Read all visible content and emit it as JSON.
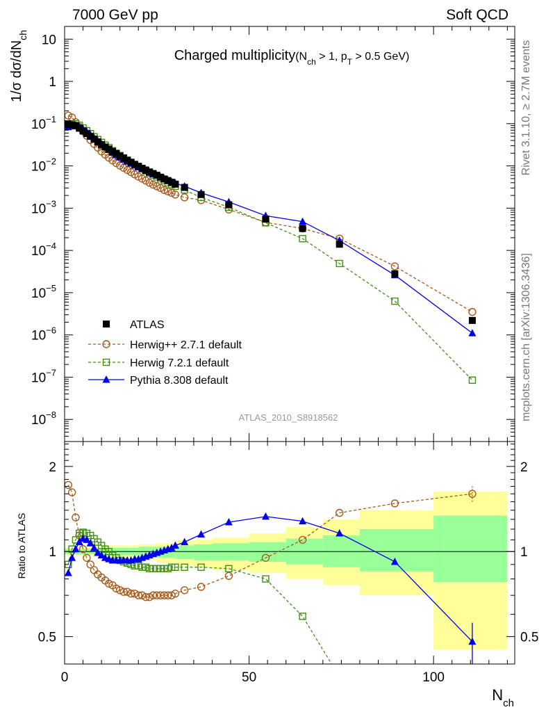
{
  "header": {
    "left": "7000 GeV pp",
    "right": "Soft QCD"
  },
  "side_labels": {
    "rivet": "Rivet 3.1.10, ≥ 2.7M events",
    "mcplots": "mcplots.cern.ch [arXiv:1306.3436]"
  },
  "chart_data": [
    {
      "type": "scatter",
      "panel": "main",
      "title_main": "Charged multiplicity",
      "title_sub": "(N_ch > 1, p_T > 0.5 GeV)",
      "ylabel": "1/σ dσ/dN_ch",
      "y_scale": "log",
      "ylim": [
        3e-09,
        20
      ],
      "xlim": [
        0,
        122
      ],
      "analysis_tag": "ATLAS_2010_S8918562",
      "y_ticks": [
        {
          "value": 10,
          "label": "10"
        },
        {
          "value": 1,
          "label": "1"
        },
        {
          "value": 0.1,
          "base": "10",
          "exp": "−1"
        },
        {
          "value": 0.01,
          "base": "10",
          "exp": "−2"
        },
        {
          "value": 0.001,
          "base": "10",
          "exp": "−3"
        },
        {
          "value": 0.0001,
          "base": "10",
          "exp": "−4"
        },
        {
          "value": 1e-05,
          "base": "10",
          "exp": "−5"
        },
        {
          "value": 1e-06,
          "base": "10",
          "exp": "−6"
        },
        {
          "value": 1e-07,
          "base": "10",
          "exp": "−7"
        },
        {
          "value": 1e-08,
          "base": "10",
          "exp": "−8"
        }
      ],
      "legend_position": "middle-left",
      "series": [
        {
          "name": "ATLAS",
          "color": "#000000",
          "marker": "square-filled",
          "line": "none",
          "x": [
            1,
            2,
            3,
            4,
            5,
            6,
            7,
            8,
            9,
            10,
            11,
            12,
            13,
            14,
            15,
            16,
            17,
            18,
            19,
            20,
            21,
            22,
            23,
            24,
            25,
            26,
            27,
            28,
            29,
            30,
            32.5,
            37,
            44.5,
            54.5,
            64.5,
            74.5,
            89.5,
            110.5
          ],
          "y": [
            0.099,
            0.093,
            0.089,
            0.078,
            0.067,
            0.058,
            0.05,
            0.043,
            0.037,
            0.032,
            0.028,
            0.025,
            0.022,
            0.0195,
            0.0172,
            0.0153,
            0.0136,
            0.0122,
            0.0109,
            0.0098,
            0.0088,
            0.008,
            0.0072,
            0.0066,
            0.006,
            0.0054,
            0.0049,
            0.0045,
            0.0041,
            0.0037,
            0.0031,
            0.0021,
            0.0012,
            0.00055,
            0.00033,
            0.00014,
            2.8e-05,
            2.2e-06
          ]
        },
        {
          "name": "Herwig++ 2.7.1 default",
          "color": "#a65a1a",
          "marker": "circle-open",
          "line": "dashed",
          "x": [
            1,
            2,
            3,
            4,
            5,
            6,
            7,
            8,
            9,
            10,
            11,
            12,
            13,
            14,
            15,
            16,
            17,
            18,
            19,
            20,
            21,
            22,
            23,
            24,
            25,
            26,
            27,
            28,
            29,
            30,
            32.5,
            37,
            44.5,
            54.5,
            64.5,
            74.5,
            89.5,
            110.5
          ],
          "y": [
            0.155,
            0.14,
            0.108,
            0.084,
            0.066,
            0.052,
            0.041,
            0.033,
            0.027,
            0.022,
            0.0185,
            0.0157,
            0.0135,
            0.0117,
            0.0102,
            0.009,
            0.008,
            0.0071,
            0.0063,
            0.0056,
            0.005,
            0.0045,
            0.004,
            0.0036,
            0.0033,
            0.003,
            0.0027,
            0.0025,
            0.0023,
            0.0021,
            0.0018,
            0.00155,
            0.00093,
            0.00046,
            0.00033,
            0.00019,
            4.2e-05,
            3.5e-06
          ]
        },
        {
          "name": "Herwig 7.2.1 default",
          "color": "#3f8f10",
          "marker": "square-open",
          "line": "dashed",
          "x": [
            1,
            2,
            3,
            4,
            5,
            6,
            7,
            8,
            9,
            10,
            11,
            12,
            13,
            14,
            15,
            16,
            17,
            18,
            19,
            20,
            21,
            22,
            23,
            24,
            25,
            26,
            27,
            28,
            29,
            30,
            32.5,
            37,
            44.5,
            54.5,
            64.5,
            74.5,
            89.5,
            110.5
          ],
          "y": [
            0.091,
            0.095,
            0.099,
            0.091,
            0.079,
            0.068,
            0.058,
            0.049,
            0.042,
            0.036,
            0.031,
            0.027,
            0.023,
            0.02,
            0.0176,
            0.0155,
            0.0137,
            0.0121,
            0.0107,
            0.0096,
            0.0085,
            0.0076,
            0.0068,
            0.0061,
            0.0055,
            0.005,
            0.0045,
            0.004,
            0.0036,
            0.0033,
            0.0027,
            0.0018,
            0.00105,
            0.00045,
            0.00019,
            4.9e-05,
            6.3e-06,
            8.5e-08
          ]
        },
        {
          "name": "Pythia 8.308 default",
          "color": "#0000ee",
          "marker": "triangle-filled",
          "line": "solid",
          "x": [
            1,
            2,
            3,
            4,
            5,
            6,
            7,
            8,
            9,
            10,
            11,
            12,
            13,
            14,
            15,
            16,
            17,
            18,
            19,
            20,
            21,
            22,
            23,
            24,
            25,
            26,
            27,
            28,
            29,
            30,
            32.5,
            37,
            44.5,
            54.5,
            64.5,
            74.5,
            89.5,
            110.5
          ],
          "y": [
            0.083,
            0.088,
            0.09,
            0.084,
            0.075,
            0.065,
            0.055,
            0.046,
            0.039,
            0.033,
            0.028,
            0.024,
            0.0205,
            0.018,
            0.0159,
            0.0142,
            0.0127,
            0.0114,
            0.0103,
            0.0093,
            0.0085,
            0.0077,
            0.007,
            0.0064,
            0.0059,
            0.0054,
            0.005,
            0.0046,
            0.0042,
            0.0039,
            0.0033,
            0.0023,
            0.0014,
            0.00066,
            0.00048,
            0.00017,
            2.6e-05,
            1.1e-06
          ]
        }
      ]
    },
    {
      "type": "line",
      "panel": "ratio",
      "ylabel": "Ratio to ATLAS",
      "y_scale": "log",
      "ylim": [
        0.4,
        2.45
      ],
      "xlim": [
        0,
        122
      ],
      "xlabel": "N_ch",
      "x_ticks": [
        0,
        50,
        100
      ],
      "y_ticks": [
        {
          "value": 0.5,
          "label": "0.5"
        },
        {
          "value": 1,
          "label": "1"
        },
        {
          "value": 2,
          "label": "2"
        }
      ],
      "reference_line": 1,
      "bands": [
        {
          "x_lo": 0,
          "x_hi": 10,
          "inner": [
            0.98,
            1.02
          ],
          "outer": [
            0.97,
            1.03
          ]
        },
        {
          "x_lo": 10,
          "x_hi": 20,
          "inner": [
            0.97,
            1.03
          ],
          "outer": [
            0.95,
            1.05
          ]
        },
        {
          "x_lo": 20,
          "x_hi": 25,
          "inner": [
            0.96,
            1.04
          ],
          "outer": [
            0.93,
            1.06
          ]
        },
        {
          "x_lo": 25,
          "x_hi": 30,
          "inner": [
            0.95,
            1.04
          ],
          "outer": [
            0.91,
            1.07
          ]
        },
        {
          "x_lo": 30,
          "x_hi": 35,
          "inner": [
            0.94,
            1.05
          ],
          "outer": [
            0.89,
            1.09
          ]
        },
        {
          "x_lo": 35,
          "x_hi": 40,
          "inner": [
            0.93,
            1.06
          ],
          "outer": [
            0.88,
            1.1
          ]
        },
        {
          "x_lo": 40,
          "x_hi": 50,
          "inner": [
            0.93,
            1.07
          ],
          "outer": [
            0.86,
            1.12
          ]
        },
        {
          "x_lo": 50,
          "x_hi": 60,
          "inner": [
            0.92,
            1.08
          ],
          "outer": [
            0.84,
            1.16
          ]
        },
        {
          "x_lo": 60,
          "x_hi": 70,
          "inner": [
            0.9,
            1.11
          ],
          "outer": [
            0.8,
            1.22
          ]
        },
        {
          "x_lo": 70,
          "x_hi": 80,
          "inner": [
            0.88,
            1.14
          ],
          "outer": [
            0.76,
            1.3
          ]
        },
        {
          "x_lo": 80,
          "x_hi": 100,
          "inner": [
            0.85,
            1.2
          ],
          "outer": [
            0.7,
            1.4
          ]
        },
        {
          "x_lo": 100,
          "x_hi": 120,
          "inner": [
            0.78,
            1.34
          ],
          "outer": [
            0.45,
            1.63
          ]
        }
      ],
      "band_colors": {
        "inner": "#99ff99",
        "outer": "#ffff99"
      },
      "series": [
        {
          "name": "Herwig++ 2.7.1 default",
          "color": "#a65a1a",
          "marker": "circle-open",
          "line": "dashed",
          "x": [
            1,
            2,
            3,
            4,
            5,
            6,
            7,
            8,
            9,
            10,
            11,
            12,
            13,
            14,
            15,
            16,
            17,
            18,
            19,
            20,
            21,
            22,
            23,
            24,
            25,
            26,
            27,
            28,
            29,
            30,
            32.5,
            37,
            44.5,
            54.5,
            64.5,
            74.5,
            89.5,
            110.5
          ],
          "y": [
            1.72,
            1.62,
            1.32,
            1.14,
            1.02,
            0.95,
            0.9,
            0.86,
            0.83,
            0.81,
            0.79,
            0.77,
            0.76,
            0.74,
            0.73,
            0.72,
            0.72,
            0.71,
            0.71,
            0.7,
            0.7,
            0.69,
            0.69,
            0.7,
            0.7,
            0.7,
            0.7,
            0.7,
            0.7,
            0.71,
            0.73,
            0.75,
            0.82,
            0.95,
            1.1,
            1.37,
            1.48,
            1.6
          ],
          "err": {
            "110.5": 0.1
          }
        },
        {
          "name": "Herwig 7.2.1 default",
          "color": "#3f8f10",
          "marker": "square-open",
          "line": "dashed",
          "x": [
            1,
            2,
            3,
            4,
            5,
            6,
            7,
            8,
            9,
            10,
            11,
            12,
            13,
            14,
            15,
            16,
            17,
            18,
            19,
            20,
            21,
            22,
            23,
            24,
            25,
            26,
            27,
            28,
            29,
            30,
            32.5,
            37,
            44.5,
            54.5,
            64.5,
            74.5
          ],
          "y": [
            0.9,
            1.02,
            1.1,
            1.16,
            1.17,
            1.16,
            1.14,
            1.11,
            1.08,
            1.05,
            1.02,
            1.0,
            0.97,
            0.95,
            0.93,
            0.92,
            0.91,
            0.9,
            0.89,
            0.89,
            0.88,
            0.88,
            0.87,
            0.87,
            0.87,
            0.87,
            0.87,
            0.87,
            0.88,
            0.88,
            0.88,
            0.88,
            0.87,
            0.8,
            0.59,
            0.36
          ]
        },
        {
          "name": "Pythia 8.308 default",
          "color": "#0000ee",
          "marker": "triangle-filled",
          "line": "solid",
          "x": [
            1,
            2,
            3,
            4,
            5,
            6,
            7,
            8,
            9,
            10,
            11,
            12,
            13,
            14,
            15,
            16,
            17,
            18,
            19,
            20,
            21,
            22,
            23,
            24,
            25,
            26,
            27,
            28,
            29,
            30,
            32.5,
            37,
            44.5,
            54.5,
            64.5,
            74.5,
            89.5,
            110.5
          ],
          "y": [
            0.84,
            0.95,
            1.02,
            1.08,
            1.11,
            1.1,
            1.07,
            1.03,
            0.99,
            0.97,
            0.95,
            0.94,
            0.93,
            0.93,
            0.93,
            0.93,
            0.93,
            0.93,
            0.94,
            0.94,
            0.95,
            0.96,
            0.97,
            0.98,
            0.99,
            1.0,
            1.01,
            1.02,
            1.03,
            1.05,
            1.08,
            1.15,
            1.27,
            1.33,
            1.28,
            1.16,
            0.92,
            0.48
          ],
          "err": {
            "89.5": 0.02,
            "110.5": 0.08
          }
        }
      ]
    }
  ]
}
